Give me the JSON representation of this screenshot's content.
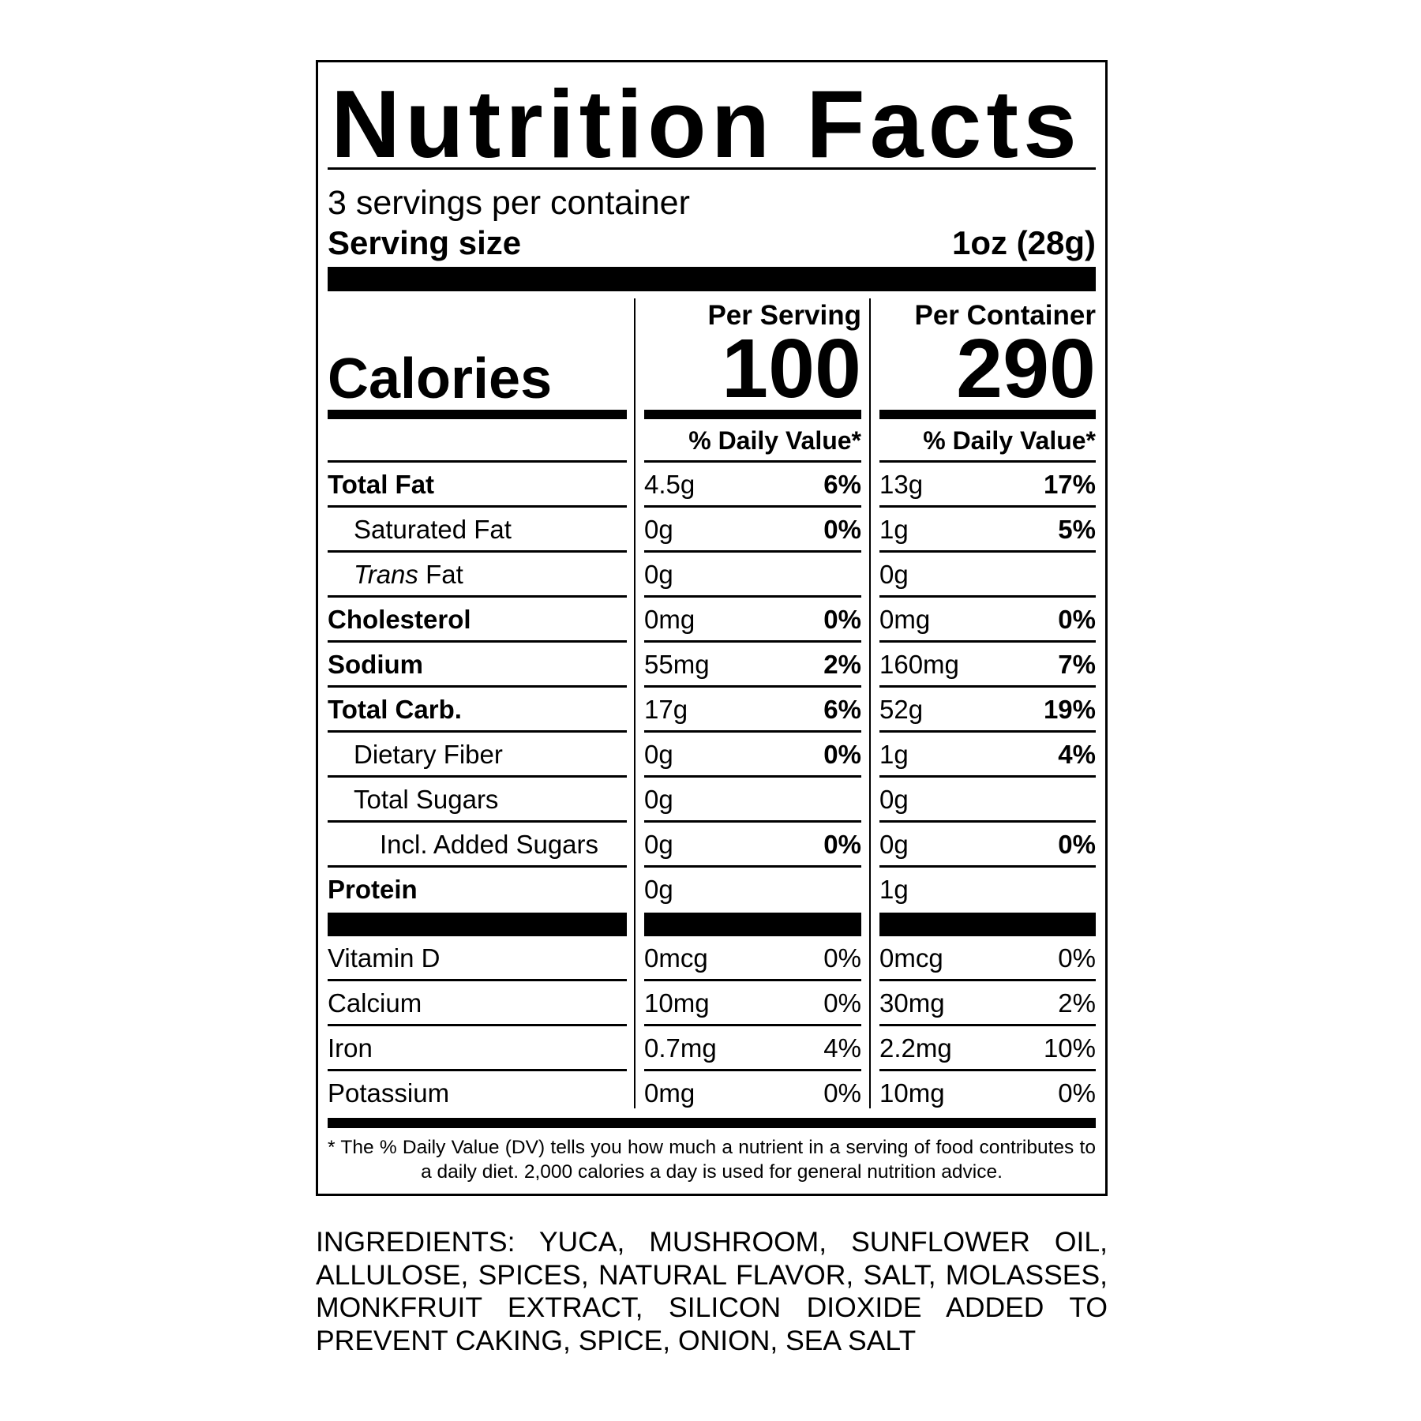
{
  "title": "Nutrition Facts",
  "servings_per_container": "3 servings per container",
  "serving_size_label": "Serving size",
  "serving_size_value": "1oz (28g)",
  "calories_label": "Calories",
  "columns": [
    {
      "header": "Per Serving",
      "calories": "100",
      "dv_header": "% Daily Value*"
    },
    {
      "header": "Per Container",
      "calories": "290",
      "dv_header": "% Daily Value*"
    }
  ],
  "nutrients": [
    {
      "label": "Total Fat",
      "bold": true,
      "indent": 0,
      "serving": "4.5g",
      "serving_dv": "6%",
      "container": "13g",
      "container_dv": "17%"
    },
    {
      "label": "Saturated Fat",
      "bold": false,
      "indent": 1,
      "serving": "0g",
      "serving_dv": "0%",
      "container": "1g",
      "container_dv": "5%"
    },
    {
      "label_italic": "Trans",
      "label": " Fat",
      "bold": false,
      "indent": 1,
      "serving": "0g",
      "serving_dv": "",
      "container": "0g",
      "container_dv": ""
    },
    {
      "label": "Cholesterol",
      "bold": true,
      "indent": 0,
      "serving": "0mg",
      "serving_dv": "0%",
      "container": "0mg",
      "container_dv": "0%"
    },
    {
      "label": "Sodium",
      "bold": true,
      "indent": 0,
      "serving": "55mg",
      "serving_dv": "2%",
      "container": "160mg",
      "container_dv": "7%"
    },
    {
      "label": "Total Carb.",
      "bold": true,
      "indent": 0,
      "serving": "17g",
      "serving_dv": "6%",
      "container": "52g",
      "container_dv": "19%"
    },
    {
      "label": "Dietary Fiber",
      "bold": false,
      "indent": 1,
      "serving": "0g",
      "serving_dv": "0%",
      "container": "1g",
      "container_dv": "4%"
    },
    {
      "label": "Total Sugars",
      "bold": false,
      "indent": 1,
      "serving": "0g",
      "serving_dv": "",
      "container": "0g",
      "container_dv": ""
    },
    {
      "label": "Incl. Added Sugars",
      "bold": false,
      "indent": 2,
      "serving": "0g",
      "serving_dv": "0%",
      "container": "0g",
      "container_dv": "0%"
    },
    {
      "label": "Protein",
      "bold": true,
      "indent": 0,
      "serving": "0g",
      "serving_dv": "",
      "container": "1g",
      "container_dv": ""
    }
  ],
  "vitamins": [
    {
      "label": "Vitamin D",
      "serving": "0mcg",
      "serving_dv": "0%",
      "container": "0mcg",
      "container_dv": "0%"
    },
    {
      "label": "Calcium",
      "serving": "10mg",
      "serving_dv": "0%",
      "container": "30mg",
      "container_dv": "2%"
    },
    {
      "label": "Iron",
      "serving": "0.7mg",
      "serving_dv": "4%",
      "container": "2.2mg",
      "container_dv": "10%"
    },
    {
      "label": "Potassium",
      "serving": "0mg",
      "serving_dv": "0%",
      "container": "10mg",
      "container_dv": "0%"
    }
  ],
  "footnote": "* The % Daily Value (DV) tells you how much a nutrient in a serving of food contributes to a daily diet. 2,000 calories a day is used for general nutrition advice.",
  "ingredients": "INGREDIENTS: YUCA, MUSHROOM, SUNFLOWER OIL, ALLULOSE, SPICES, NATURAL FLAVOR, SALT, MOLASSES, MONKFRUIT EXTRACT, SILICON DIOXIDE ADDED TO PREVENT CAKING, SPICE, ONION, SEA SALT"
}
